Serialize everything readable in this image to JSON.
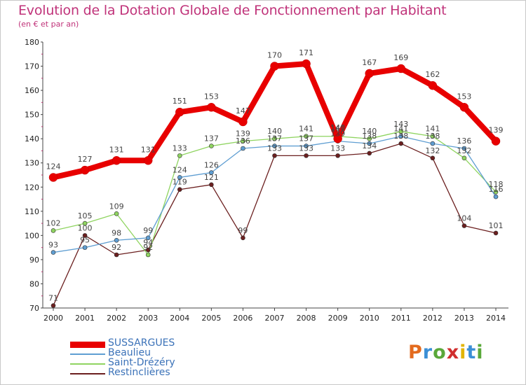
{
  "header": {
    "title": "Evolution de la Dotation Globale de Fonctionnement par Habitant",
    "subtitle": "(en € et par an)"
  },
  "brand": {
    "text": "Proxiti"
  },
  "chart_data": {
    "type": "line",
    "x": [
      "2000",
      "2001",
      "2002",
      "2003",
      "2004",
      "2005",
      "2006",
      "2007",
      "2008",
      "2009",
      "2010",
      "2011",
      "2012",
      "2013",
      "2014"
    ],
    "yticks": [
      70,
      80,
      90,
      100,
      110,
      120,
      130,
      140,
      150,
      160,
      170,
      180
    ],
    "ylim": [
      70,
      180
    ],
    "grid": false,
    "legend": "bottom-left",
    "series": [
      {
        "name": "SUSSARGUES",
        "color": "#e80000",
        "values": [
          124,
          127,
          131,
          131,
          151,
          153,
          147,
          170,
          171,
          140,
          167,
          169,
          162,
          153,
          139
        ],
        "labels": [
          "124",
          "127",
          "131",
          "131",
          "151",
          "153",
          "147",
          "170",
          "171",
          "140",
          "167",
          "169",
          "162",
          "153",
          "139"
        ]
      },
      {
        "name": "Beaulieu",
        "color": "#5f9ed2",
        "values": [
          93,
          95,
          98,
          99,
          124,
          126,
          136,
          137,
          137,
          139,
          138,
          141,
          138,
          136,
          116
        ],
        "labels": [
          "93",
          "95",
          "98",
          "99",
          "124",
          "126",
          "136",
          "137",
          "137",
          "139",
          "138",
          "141",
          "138",
          "136",
          "116"
        ]
      },
      {
        "name": "Saint-Drézéry",
        "color": "#8fd460",
        "values": [
          102,
          105,
          109,
          92,
          133,
          137,
          139,
          140,
          141,
          141,
          140,
          143,
          141,
          132,
          118
        ],
        "labels": [
          "102",
          "105",
          "109",
          "92",
          "133",
          "137",
          "139",
          "140",
          "141",
          "141",
          "140",
          "143",
          "141",
          "132",
          "118"
        ]
      },
      {
        "name": "Restinclières",
        "color": "#6b1f1f",
        "values": [
          71,
          100,
          92,
          94,
          119,
          121,
          99,
          133,
          133,
          133,
          134,
          138,
          132,
          104,
          101
        ],
        "labels": [
          "71",
          "100",
          "92",
          "94",
          "119",
          "121",
          "99",
          "133",
          "133",
          "133",
          "134",
          "138",
          "132",
          "104",
          "101"
        ]
      }
    ]
  }
}
